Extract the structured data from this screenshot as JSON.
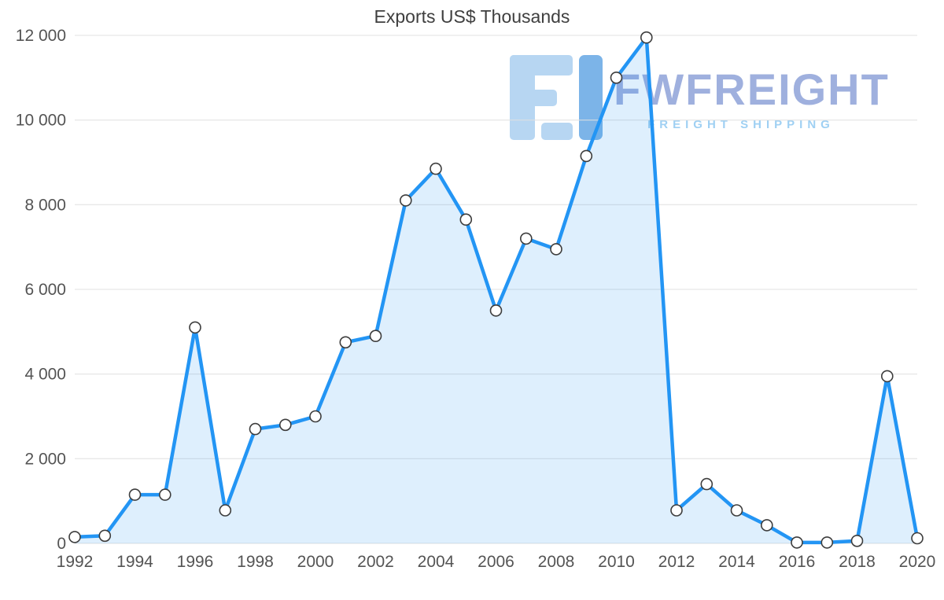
{
  "chart_data": {
    "type": "area",
    "title": "Exports US$ Thousands",
    "xlabel": "",
    "ylabel": "",
    "x": [
      1992,
      1993,
      1994,
      1995,
      1996,
      1997,
      1998,
      1999,
      2000,
      2001,
      2002,
      2003,
      2004,
      2005,
      2006,
      2007,
      2008,
      2009,
      2010,
      2011,
      2012,
      2013,
      2014,
      2015,
      2016,
      2017,
      2018,
      2019,
      2020
    ],
    "values": [
      150,
      180,
      1150,
      1150,
      5100,
      780,
      2700,
      2800,
      3000,
      4750,
      4900,
      8100,
      8850,
      7650,
      5500,
      7200,
      6950,
      9150,
      11000,
      11950,
      780,
      1400,
      780,
      430,
      20,
      20,
      60,
      3950,
      120
    ],
    "ylim": [
      0,
      12000
    ],
    "grid": true,
    "legend_position": "none",
    "yticks": [
      {
        "value": 0,
        "label": "0"
      },
      {
        "value": 2000,
        "label": "2 000"
      },
      {
        "value": 4000,
        "label": "4 000"
      },
      {
        "value": 6000,
        "label": "6 000"
      },
      {
        "value": 8000,
        "label": "8 000"
      },
      {
        "value": 10000,
        "label": "10 000"
      },
      {
        "value": 12000,
        "label": "12 000"
      }
    ],
    "xticks": [
      1992,
      1994,
      1996,
      1998,
      2000,
      2002,
      2004,
      2006,
      2008,
      2010,
      2012,
      2014,
      2016,
      2018,
      2020
    ]
  },
  "watermark": {
    "brand": "FWFREIGHT",
    "tagline": "FREIGHT SHIPPING"
  },
  "colors": {
    "line": "#2395f4",
    "fill": "rgba(33,150,243,0.15)",
    "marker_fill": "#ffffff",
    "marker_stroke": "#3d3d3d",
    "grid": "#e0e0e0",
    "axis_text": "#545454",
    "title_text": "#3f3f3f",
    "logo_glyph_light": "#b7d6f2",
    "logo_glyph_dark": "#7cb4e8",
    "logo_text": "#8fa3d9",
    "logo_tagline": "#9fd0f3"
  }
}
